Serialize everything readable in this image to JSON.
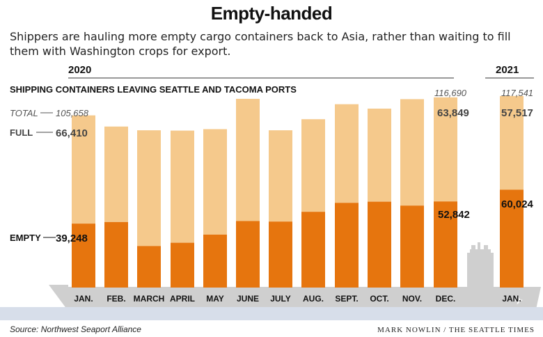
{
  "title": "Empty-handed",
  "subtitle": "Shippers are hauling more empty cargo containers back to Asia, rather than waiting to fill them with Washington crops for export.",
  "source": "Source: Northwest Seaport Alliance",
  "credit": "MARK NOWLIN / THE SEATTLE TIMES",
  "colors": {
    "full": "#f5c98c",
    "empty": "#e6750e",
    "ship": "#cfcfcf",
    "water": "#d7deea"
  },
  "chart_data": {
    "type": "bar",
    "title": "SHIPPING CONTAINERS LEAVING SEATTLE AND TACOMA PORTS",
    "stacked": true,
    "year_labels": [
      "2020",
      "2021"
    ],
    "categories": [
      "JAN.",
      "FEB.",
      "MARCH",
      "APRIL",
      "MAY",
      "JUNE",
      "JULY",
      "AUG.",
      "SEPT.",
      "OCT.",
      "NOV.",
      "DEC.",
      "JAN."
    ],
    "series": [
      {
        "name": "EMPTY",
        "values": [
          39248,
          40200,
          25500,
          27500,
          32500,
          40800,
          40500,
          46500,
          52000,
          52700,
          50300,
          52842,
          60024
        ]
      },
      {
        "name": "FULL",
        "values": [
          66410,
          58600,
          71000,
          68800,
          64700,
          75000,
          56000,
          56800,
          60500,
          57100,
          65300,
          63849,
          57517
        ]
      }
    ],
    "totals": [
      105658,
      98800,
      96500,
      96300,
      97200,
      115800,
      96500,
      103300,
      112500,
      109800,
      115600,
      116690,
      117541
    ],
    "callouts": {
      "total_label": "TOTAL",
      "full_label": "FULL",
      "empty_label": "EMPTY",
      "jan2020_total": "105,658",
      "jan2020_full": "66,410",
      "jan2020_empty": "39,248",
      "dec_total": "116,690",
      "dec_full": "63,849",
      "dec_empty": "52,842",
      "jan2021_total": "117,541",
      "jan2021_full": "57,517",
      "jan2021_empty": "60,024"
    },
    "ylim": [
      0,
      125000
    ]
  }
}
